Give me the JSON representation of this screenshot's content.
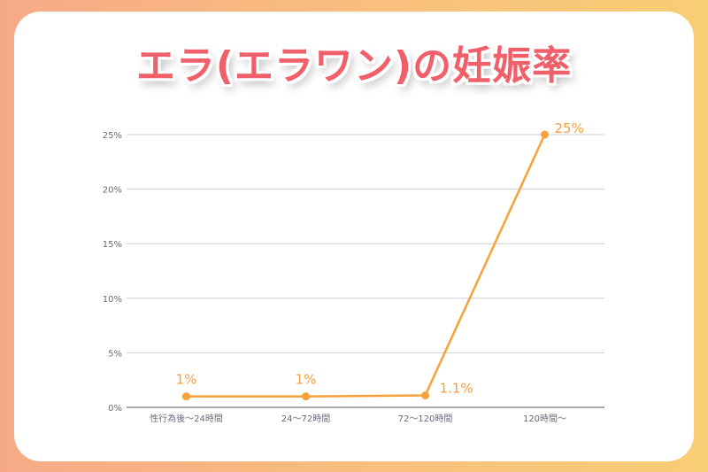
{
  "title": "エラ(エラワン)の妊娠率",
  "colors": {
    "line": "#f7a13a",
    "grid": "#cfcfcf",
    "title": "#f0606a"
  },
  "chart_data": {
    "type": "line",
    "title": "",
    "xlabel": "",
    "ylabel": "",
    "categories": [
      "性行為後〜24時間",
      "24〜72時間",
      "72〜120時間",
      "120時間〜"
    ],
    "series": [
      {
        "values": [
          1,
          1,
          1.1,
          25
        ]
      }
    ],
    "data_labels": [
      "1%",
      "1%",
      "1.1%",
      "25%"
    ],
    "ylim": [
      0,
      25
    ],
    "yticks": [
      0,
      5,
      10,
      15,
      20,
      25
    ],
    "ytick_labels": [
      "0%",
      "5%",
      "10%",
      "15%",
      "20%",
      "25%"
    ],
    "grid": true,
    "legend": "none"
  }
}
